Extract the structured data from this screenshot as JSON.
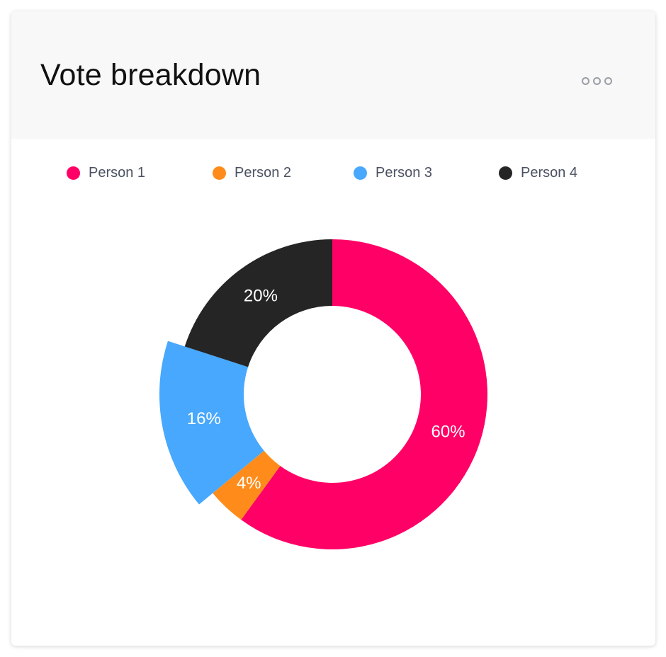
{
  "card": {
    "title": "Vote breakdown",
    "menu_icon": "more-horizontal-icon"
  },
  "colors": {
    "header_bg": "#f8f8f8",
    "person1": "#ff0066",
    "person2": "#ff8c1a",
    "person3": "#47a8fd",
    "person4": "#252525"
  },
  "chart_data": {
    "type": "pie",
    "variant": "donut",
    "title": "Vote breakdown",
    "legend_position": "top",
    "categories": [
      "Person 1",
      "Person 2",
      "Person 3",
      "Person 4"
    ],
    "values": [
      60,
      4,
      16,
      20
    ],
    "labels": [
      "60%",
      "4%",
      "16%",
      "20%"
    ],
    "colors": [
      "#ff0066",
      "#ff8c1a",
      "#47a8fd",
      "#252525"
    ],
    "highlighted": "Person 3"
  }
}
